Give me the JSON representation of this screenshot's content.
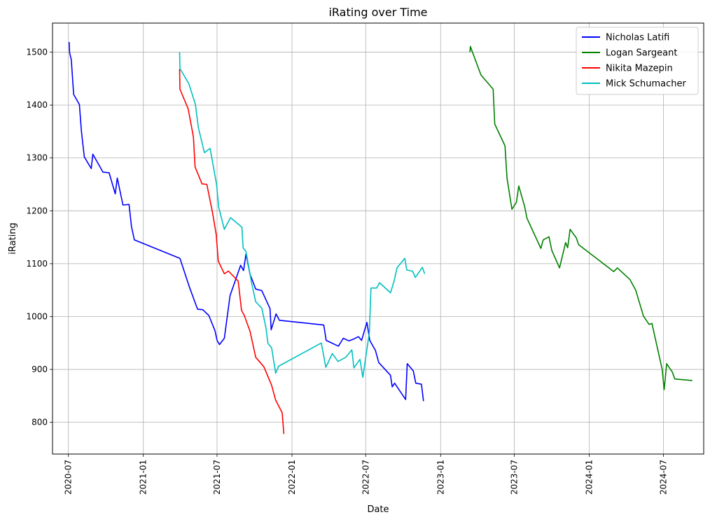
{
  "chart_data": {
    "type": "line",
    "title": "iRating over Time",
    "xlabel": "Date",
    "ylabel": "iRating",
    "xlim": [
      "2020-05-23",
      "2024-10-08"
    ],
    "ylim": [
      740,
      1555
    ],
    "grid": true,
    "legend_position": "top-right",
    "x_ticks": [
      "2020-07",
      "2021-01",
      "2021-07",
      "2022-01",
      "2022-07",
      "2023-01",
      "2023-07",
      "2024-01",
      "2024-07"
    ],
    "y_ticks": [
      800,
      900,
      1000,
      1100,
      1200,
      1300,
      1400,
      1500
    ],
    "series": [
      {
        "name": "Nicholas Latifi",
        "color": "#0000ff",
        "points": [
          [
            "2020-07-03",
            1519
          ],
          [
            "2020-07-04",
            1499
          ],
          [
            "2020-07-08",
            1486
          ],
          [
            "2020-07-14",
            1420
          ],
          [
            "2020-07-28",
            1401
          ],
          [
            "2020-08-02",
            1350
          ],
          [
            "2020-08-09",
            1302
          ],
          [
            "2020-08-26",
            1280
          ],
          [
            "2020-08-30",
            1307
          ],
          [
            "2020-09-24",
            1273
          ],
          [
            "2020-10-09",
            1272
          ],
          [
            "2020-10-24",
            1232
          ],
          [
            "2020-10-29",
            1262
          ],
          [
            "2020-11-12",
            1211
          ],
          [
            "2020-11-27",
            1212
          ],
          [
            "2020-12-03",
            1170
          ],
          [
            "2020-12-10",
            1145
          ],
          [
            "2021-04-01",
            1110
          ],
          [
            "2021-04-25",
            1054
          ],
          [
            "2021-05-14",
            1014
          ],
          [
            "2021-05-27",
            1013
          ],
          [
            "2021-06-11",
            1002
          ],
          [
            "2021-06-26",
            973
          ],
          [
            "2021-07-01",
            955
          ],
          [
            "2021-07-07",
            947
          ],
          [
            "2021-07-19",
            959
          ],
          [
            "2021-08-02",
            1040
          ],
          [
            "2021-08-28",
            1097
          ],
          [
            "2021-09-04",
            1087
          ],
          [
            "2021-09-10",
            1118
          ],
          [
            "2021-09-20",
            1080
          ],
          [
            "2021-10-04",
            1052
          ],
          [
            "2021-10-19",
            1049
          ],
          [
            "2021-11-08",
            1015
          ],
          [
            "2021-11-11",
            975
          ],
          [
            "2021-11-23",
            1005
          ],
          [
            "2021-12-01",
            993
          ],
          [
            "2022-03-20",
            984
          ],
          [
            "2022-03-26",
            955
          ],
          [
            "2022-04-25",
            944
          ],
          [
            "2022-05-07",
            959
          ],
          [
            "2022-05-21",
            954
          ],
          [
            "2022-06-03",
            958
          ],
          [
            "2022-06-13",
            962
          ],
          [
            "2022-06-21",
            955
          ],
          [
            "2022-07-04",
            989
          ],
          [
            "2022-07-11",
            955
          ],
          [
            "2022-07-25",
            936
          ],
          [
            "2022-08-02",
            913
          ],
          [
            "2022-08-31",
            889
          ],
          [
            "2022-09-04",
            867
          ],
          [
            "2022-09-10",
            874
          ],
          [
            "2022-10-07",
            843
          ],
          [
            "2022-10-11",
            911
          ],
          [
            "2022-10-26",
            897
          ],
          [
            "2022-11-01",
            874
          ],
          [
            "2022-11-15",
            872
          ],
          [
            "2022-11-20",
            840
          ]
        ]
      },
      {
        "name": "Logan Sargeant",
        "color": "#008000",
        "points": [
          [
            "2023-03-14",
            1500
          ],
          [
            "2023-03-15",
            1511
          ],
          [
            "2023-04-10",
            1457
          ],
          [
            "2023-05-10",
            1430
          ],
          [
            "2023-05-14",
            1364
          ],
          [
            "2023-06-08",
            1323
          ],
          [
            "2023-06-13",
            1262
          ],
          [
            "2023-06-25",
            1203
          ],
          [
            "2023-07-06",
            1216
          ],
          [
            "2023-07-12",
            1247
          ],
          [
            "2023-07-26",
            1209
          ],
          [
            "2023-08-01",
            1186
          ],
          [
            "2023-09-04",
            1129
          ],
          [
            "2023-09-10",
            1145
          ],
          [
            "2023-09-24",
            1151
          ],
          [
            "2023-10-01",
            1125
          ],
          [
            "2023-10-20",
            1092
          ],
          [
            "2023-11-04",
            1140
          ],
          [
            "2023-11-09",
            1130
          ],
          [
            "2023-11-15",
            1165
          ],
          [
            "2023-11-30",
            1149
          ],
          [
            "2023-12-06",
            1136
          ],
          [
            "2024-03-01",
            1085
          ],
          [
            "2024-03-10",
            1092
          ],
          [
            "2024-04-10",
            1070
          ],
          [
            "2024-04-24",
            1050
          ],
          [
            "2024-05-13",
            1001
          ],
          [
            "2024-05-27",
            985
          ],
          [
            "2024-06-03",
            987
          ],
          [
            "2024-06-28",
            900
          ],
          [
            "2024-07-03",
            862
          ],
          [
            "2024-07-09",
            911
          ],
          [
            "2024-07-23",
            895
          ],
          [
            "2024-07-29",
            882
          ],
          [
            "2024-09-10",
            879
          ]
        ]
      },
      {
        "name": "Nikita Mazepin",
        "color": "#ff0000",
        "points": [
          [
            "2021-03-31",
            1468
          ],
          [
            "2021-04-01",
            1430
          ],
          [
            "2021-04-21",
            1393
          ],
          [
            "2021-05-04",
            1340
          ],
          [
            "2021-05-08",
            1283
          ],
          [
            "2021-05-25",
            1251
          ],
          [
            "2021-06-06",
            1250
          ],
          [
            "2021-06-20",
            1196
          ],
          [
            "2021-06-29",
            1155
          ],
          [
            "2021-07-04",
            1105
          ],
          [
            "2021-07-19",
            1081
          ],
          [
            "2021-07-29",
            1086
          ],
          [
            "2021-08-22",
            1067
          ],
          [
            "2021-08-30",
            1012
          ],
          [
            "2021-09-06",
            1002
          ],
          [
            "2021-09-20",
            972
          ],
          [
            "2021-10-04",
            923
          ],
          [
            "2021-10-24",
            905
          ],
          [
            "2021-11-12",
            870
          ],
          [
            "2021-11-22",
            842
          ],
          [
            "2021-12-08",
            818
          ],
          [
            "2021-12-12",
            778
          ]
        ]
      },
      {
        "name": "Mick Schumacher",
        "color": "#00bfbf",
        "points": [
          [
            "2021-03-31",
            1500
          ],
          [
            "2021-04-01",
            1469
          ],
          [
            "2021-04-23",
            1440
          ],
          [
            "2021-05-09",
            1401
          ],
          [
            "2021-05-16",
            1358
          ],
          [
            "2021-05-31",
            1310
          ],
          [
            "2021-06-14",
            1318
          ],
          [
            "2021-06-30",
            1249
          ],
          [
            "2021-07-05",
            1207
          ],
          [
            "2021-07-19",
            1165
          ],
          [
            "2021-08-03",
            1187
          ],
          [
            "2021-08-31",
            1169
          ],
          [
            "2021-09-03",
            1130
          ],
          [
            "2021-09-10",
            1123
          ],
          [
            "2021-09-24",
            1063
          ],
          [
            "2021-10-04",
            1028
          ],
          [
            "2021-10-19",
            1016
          ],
          [
            "2021-10-29",
            979
          ],
          [
            "2021-11-03",
            949
          ],
          [
            "2021-11-12",
            941
          ],
          [
            "2021-11-22",
            893
          ],
          [
            "2021-11-29",
            906
          ],
          [
            "2022-03-14",
            950
          ],
          [
            "2022-03-25",
            904
          ],
          [
            "2022-04-10",
            930
          ],
          [
            "2022-04-24",
            915
          ],
          [
            "2022-05-13",
            923
          ],
          [
            "2022-05-28",
            937
          ],
          [
            "2022-06-02",
            903
          ],
          [
            "2022-06-17",
            919
          ],
          [
            "2022-06-24",
            885
          ],
          [
            "2022-07-10",
            970
          ],
          [
            "2022-07-14",
            1054
          ],
          [
            "2022-07-28",
            1054
          ],
          [
            "2022-08-04",
            1064
          ],
          [
            "2022-08-31",
            1045
          ],
          [
            "2022-09-09",
            1068
          ],
          [
            "2022-09-16",
            1092
          ],
          [
            "2022-10-05",
            1110
          ],
          [
            "2022-10-10",
            1088
          ],
          [
            "2022-10-24",
            1086
          ],
          [
            "2022-10-31",
            1074
          ],
          [
            "2022-11-17",
            1093
          ],
          [
            "2022-11-23",
            1081
          ]
        ]
      }
    ]
  }
}
